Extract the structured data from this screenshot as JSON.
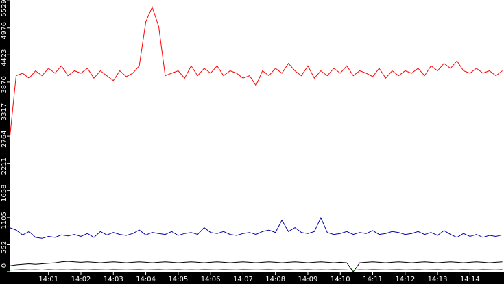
{
  "chart_data": {
    "type": "line",
    "x": [
      -0.2,
      0,
      0.2,
      0.4,
      0.6,
      0.8,
      1.0,
      1.2,
      1.4,
      1.6,
      1.8,
      2.0,
      2.2,
      2.4,
      2.6,
      2.8,
      3.0,
      3.2,
      3.4,
      3.6,
      3.8,
      4.0,
      4.2,
      4.4,
      4.6,
      4.8,
      5.0,
      5.2,
      5.4,
      5.6,
      5.8,
      6.0,
      6.2,
      6.4,
      6.6,
      6.8,
      7.0,
      7.2,
      7.4,
      7.6,
      7.8,
      8.0,
      8.2,
      8.4,
      8.6,
      8.8,
      9.0,
      9.2,
      9.4,
      9.6,
      9.8,
      10.0,
      10.2,
      10.4,
      10.6,
      10.8,
      11.0,
      11.2,
      11.4,
      11.6,
      11.8,
      12.0,
      12.2,
      12.4,
      12.6,
      12.8,
      13.0,
      13.2,
      13.4,
      13.6,
      13.8,
      14.0,
      14.2,
      14.4,
      14.6,
      14.8,
      15.0
    ],
    "series": [
      {
        "color": "#ff0000",
        "values": [
          2700,
          4000,
          4050,
          3950,
          4100,
          4000,
          4150,
          4050,
          4200,
          4000,
          4100,
          4050,
          4150,
          3950,
          4100,
          4000,
          3900,
          4100,
          3980,
          4050,
          4200,
          5100,
          5400,
          5000,
          4000,
          4050,
          4100,
          3950,
          4200,
          4000,
          4150,
          4050,
          4200,
          4000,
          4100,
          4050,
          3950,
          4000,
          3800,
          4100,
          4000,
          4150,
          4050,
          4250,
          4100,
          4000,
          4200,
          3950,
          4100,
          4000,
          4150,
          4050,
          4200,
          4000,
          4100,
          4050,
          3980,
          4150,
          3950,
          4100,
          4000,
          4100,
          4050,
          4150,
          4000,
          4200,
          4100,
          4250,
          4150,
          4300,
          4100,
          4050,
          4150,
          4050,
          4100,
          4000,
          4100
        ]
      },
      {
        "color": "#0000aa",
        "values": [
          900,
          850,
          750,
          820,
          700,
          680,
          720,
          700,
          750,
          730,
          760,
          720,
          780,
          700,
          820,
          750,
          800,
          760,
          740,
          780,
          850,
          750,
          800,
          780,
          760,
          820,
          740,
          780,
          800,
          760,
          900,
          800,
          780,
          820,
          760,
          740,
          780,
          800,
          760,
          820,
          850,
          800,
          1050,
          820,
          900,
          800,
          780,
          820,
          1100,
          800,
          760,
          780,
          820,
          760,
          800,
          780,
          840,
          760,
          780,
          820,
          800,
          760,
          780,
          820,
          760,
          800,
          740,
          840,
          760,
          700,
          780,
          720,
          760,
          700,
          740,
          720,
          750
        ]
      },
      {
        "color": "#000000",
        "values": [
          120,
          140,
          150,
          160,
          150,
          160,
          170,
          180,
          200,
          210,
          200,
          190,
          200,
          190,
          180,
          190,
          200,
          190,
          180,
          190,
          200,
          190,
          180,
          190,
          200,
          190,
          180,
          190,
          200,
          190,
          180,
          190,
          200,
          190,
          180,
          190,
          200,
          190,
          180,
          190,
          200,
          190,
          180,
          190,
          200,
          190,
          180,
          190,
          200,
          190,
          180,
          190,
          180,
          0,
          180,
          190,
          200,
          190,
          180,
          190,
          200,
          190,
          180,
          190,
          200,
          190,
          180,
          190,
          200,
          190,
          180,
          190,
          200,
          190,
          180,
          190,
          200
        ]
      },
      {
        "color": "#00cc00",
        "values": [
          30,
          40,
          50,
          40,
          45,
          35,
          50,
          40,
          45,
          40,
          50,
          45,
          40,
          50,
          45,
          40,
          50,
          45,
          40,
          45,
          50,
          40,
          45,
          50,
          40,
          45,
          50,
          40,
          45,
          40,
          50,
          45,
          40,
          50,
          45,
          40,
          50,
          45,
          40,
          45,
          50,
          40,
          45,
          50,
          40,
          45,
          50,
          40,
          45,
          40,
          50,
          45,
          40,
          30,
          45,
          40,
          50,
          45,
          40,
          45,
          50,
          40,
          45,
          50,
          40,
          45,
          50,
          40,
          45,
          40,
          50,
          45,
          40,
          50,
          45,
          40,
          50
        ]
      }
    ],
    "xlim": [
      -0.2,
      15.05
    ],
    "xticks": [
      {
        "value": 1,
        "label": "14:01"
      },
      {
        "value": 2,
        "label": "14:02"
      },
      {
        "value": 3,
        "label": "14:03"
      },
      {
        "value": 4,
        "label": "14:04"
      },
      {
        "value": 5,
        "label": "14:05"
      },
      {
        "value": 6,
        "label": "14:06"
      },
      {
        "value": 7,
        "label": "14:07"
      },
      {
        "value": 8,
        "label": "14:08"
      },
      {
        "value": 9,
        "label": "14:09"
      },
      {
        "value": 10,
        "label": "14:10"
      },
      {
        "value": 11,
        "label": "14:11"
      },
      {
        "value": 12,
        "label": "14:12"
      },
      {
        "value": 13,
        "label": "14:13"
      },
      {
        "value": 14,
        "label": "14:14"
      }
    ],
    "ylim": [
      0,
      5545
    ],
    "yticks": [
      0,
      552,
      1105,
      1658,
      2211,
      2764,
      3317,
      3870,
      4423,
      4976,
      5529
    ],
    "grid": false
  }
}
